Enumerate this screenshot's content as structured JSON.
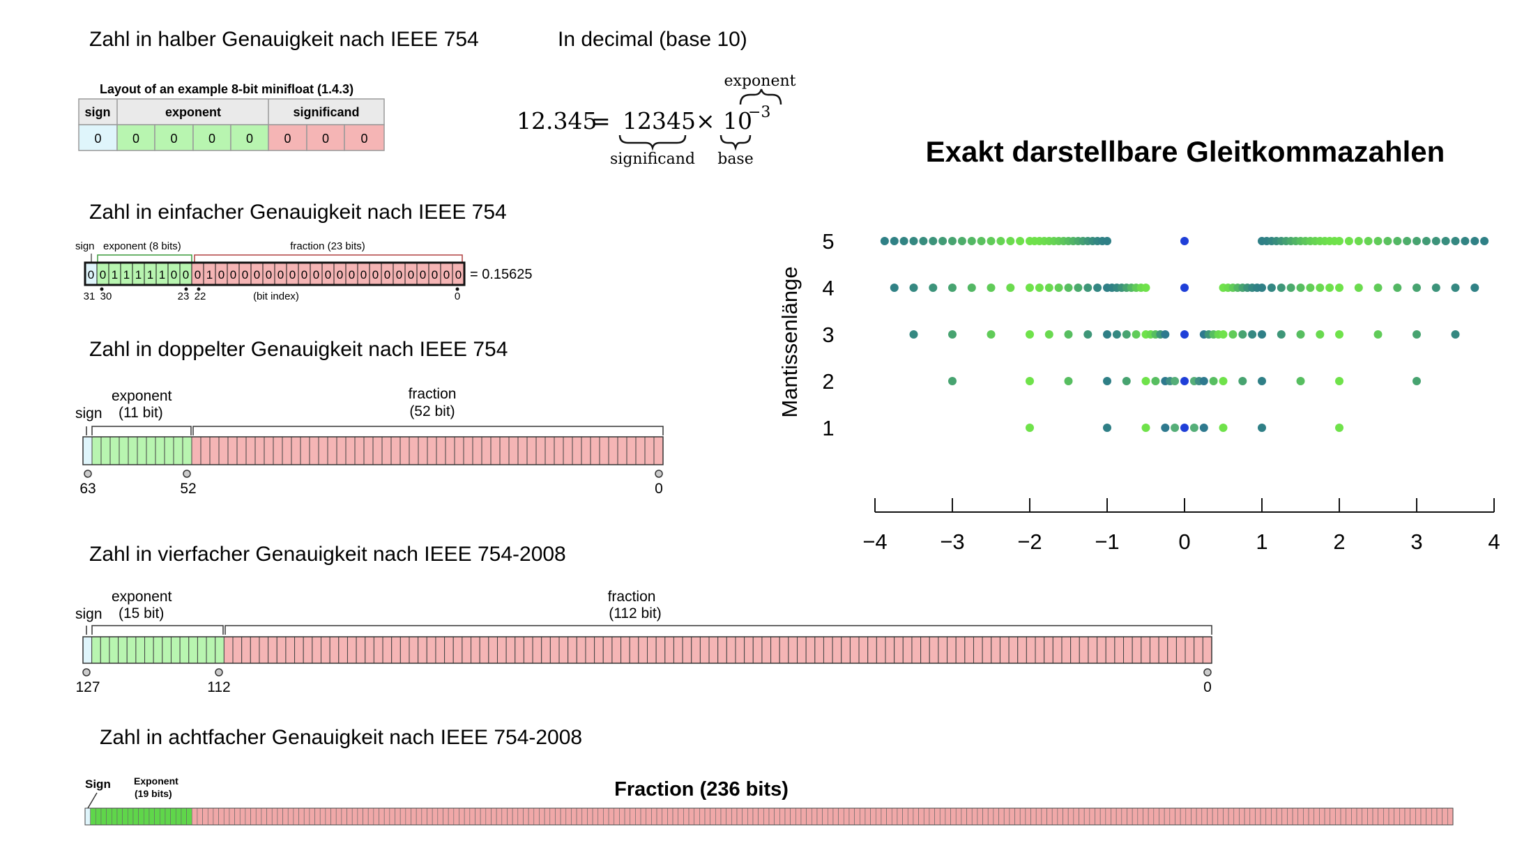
{
  "headings": {
    "half": "Zahl in halber Genauigkeit nach IEEE 754",
    "decimal": "In decimal (base 10)",
    "single": "Zahl in einfacher Genauigkeit nach IEEE 754",
    "double": "Zahl in doppelter Genauigkeit nach IEEE 754",
    "quad": "Zahl in vierfacher Genauigkeit nach IEEE 754-2008",
    "octuple": "Zahl in achtfacher Genauigkeit nach IEEE 754-2008"
  },
  "minifloat": {
    "title": "Layout of an example 8-bit minifloat (1.4.3)",
    "headers": [
      "sign",
      "exponent",
      "significand"
    ],
    "bits": [
      "0",
      "0",
      "0",
      "0",
      "0",
      "0",
      "0",
      "0"
    ]
  },
  "decimal_formula": {
    "lhs": "12.345",
    "equals": "=",
    "significand": "12345",
    "times": "×",
    "base": "10",
    "exponent_value": "−3",
    "label_exponent": "exponent",
    "label_significand": "significand",
    "label_base": "base"
  },
  "single": {
    "label_sign": "sign",
    "label_exponent": "exponent (8 bits)",
    "label_fraction": "fraction (23 bits)",
    "bits": [
      "0",
      "0",
      "1",
      "1",
      "1",
      "1",
      "1",
      "0",
      "0",
      "0",
      "1",
      "0",
      "0",
      "0",
      "0",
      "0",
      "0",
      "0",
      "0",
      "0",
      "0",
      "0",
      "0",
      "0",
      "0",
      "0",
      "0",
      "0",
      "0",
      "0",
      "0",
      "0"
    ],
    "value": "= 0.15625",
    "idx_31": "31",
    "idx_30": "30",
    "idx_23": "23",
    "idx_22": "22",
    "idx_0": "0",
    "bit_index_label": "(bit index)"
  },
  "double": {
    "label_sign": "sign",
    "label_exponent": "exponent",
    "label_exponent_bits": "(11 bit)",
    "label_fraction": "fraction",
    "label_fraction_bits": "(52 bit)",
    "idx_high": "63",
    "idx_mid": "52",
    "idx_low": "0"
  },
  "quad": {
    "label_sign": "sign",
    "label_exponent": "exponent",
    "label_exponent_bits": "(15 bit)",
    "label_fraction": "fraction",
    "label_fraction_bits": "(112 bit)",
    "idx_high": "127",
    "idx_mid": "112",
    "idx_low": "0"
  },
  "octuple": {
    "label_sign": "Sign",
    "label_exponent": "Exponent",
    "label_exponent_bits": "(19 bits)",
    "label_fraction": "Fraction (236 bits)"
  },
  "colors": {
    "sign": "#dff5fb",
    "exponent": "#b8f5b0",
    "fraction": "#f5b5b5",
    "octuple_exponent": "#5fd64a",
    "octuple_fraction": "#f0a8a8",
    "dot_light": "#6fe24a",
    "dot_dark": "#2f7f86",
    "dot_center": "#1f3fd8"
  },
  "chart_data": {
    "type": "scatter",
    "title": "Exakt darstellbare Gleitkommazahlen",
    "xlabel": "",
    "ylabel": "Mantissenlänge",
    "xlim": [
      -4,
      4
    ],
    "xticks": [
      "−4",
      "−3",
      "−2",
      "−1",
      "0",
      "1",
      "2",
      "3",
      "4"
    ],
    "yticks": [
      "5",
      "4",
      "3",
      "2",
      "1"
    ],
    "grid": false,
    "series": [
      {
        "mantissa": 1,
        "x": [
          -2,
          -1,
          -0.5,
          -0.25,
          -0.125,
          0,
          0.125,
          0.25,
          0.5,
          1,
          2
        ]
      },
      {
        "mantissa": 2,
        "x": [
          -3,
          -2,
          -1.5,
          -1,
          -0.75,
          -0.5,
          -0.375,
          -0.25,
          -0.1875,
          -0.125,
          0,
          0.125,
          0.1875,
          0.25,
          0.375,
          0.5,
          0.75,
          1,
          1.5,
          2,
          3
        ]
      },
      {
        "mantissa": 3,
        "x": [
          -3.5,
          -3,
          -2.5,
          -2,
          -1.75,
          -1.5,
          -1.25,
          -1,
          -0.875,
          -0.75,
          -0.625,
          -0.5,
          -0.4375,
          -0.375,
          -0.3125,
          -0.25,
          0,
          0.25,
          0.3125,
          0.375,
          0.4375,
          0.5,
          0.625,
          0.75,
          0.875,
          1,
          1.25,
          1.5,
          1.75,
          2,
          2.5,
          3,
          3.5
        ]
      },
      {
        "mantissa": 4,
        "x": [
          -3.75,
          -3.5,
          -3.25,
          -3,
          -2.75,
          -2.5,
          -2.25,
          -2,
          -1.875,
          -1.75,
          -1.625,
          -1.5,
          -1.375,
          -1.25,
          -1.125,
          -1,
          -0.9375,
          -0.875,
          -0.8125,
          -0.75,
          -0.6875,
          -0.625,
          -0.5625,
          -0.5,
          0,
          0.5,
          0.5625,
          0.625,
          0.6875,
          0.75,
          0.8125,
          0.875,
          0.9375,
          1,
          1.125,
          1.25,
          1.375,
          1.5,
          1.625,
          1.75,
          1.875,
          2,
          2.25,
          2.5,
          2.75,
          3,
          3.25,
          3.5,
          3.75
        ]
      },
      {
        "mantissa": 5,
        "x": [
          -3.875,
          -3.75,
          -3.625,
          -3.5,
          -3.375,
          -3.25,
          -3.125,
          -3,
          -2.875,
          -2.75,
          -2.625,
          -2.5,
          -2.375,
          -2.25,
          -2.125,
          -2,
          -1.9375,
          -1.875,
          -1.8125,
          -1.75,
          -1.6875,
          -1.625,
          -1.5625,
          -1.5,
          -1.4375,
          -1.375,
          -1.3125,
          -1.25,
          -1.1875,
          -1.125,
          -1.0625,
          -1,
          0,
          1,
          1.0625,
          1.125,
          1.1875,
          1.25,
          1.3125,
          1.375,
          1.4375,
          1.5,
          1.5625,
          1.625,
          1.6875,
          1.75,
          1.8125,
          1.875,
          1.9375,
          2,
          2.125,
          2.25,
          2.375,
          2.5,
          2.625,
          2.75,
          2.875,
          3,
          3.125,
          3.25,
          3.375,
          3.5,
          3.625,
          3.75,
          3.875
        ]
      }
    ]
  }
}
